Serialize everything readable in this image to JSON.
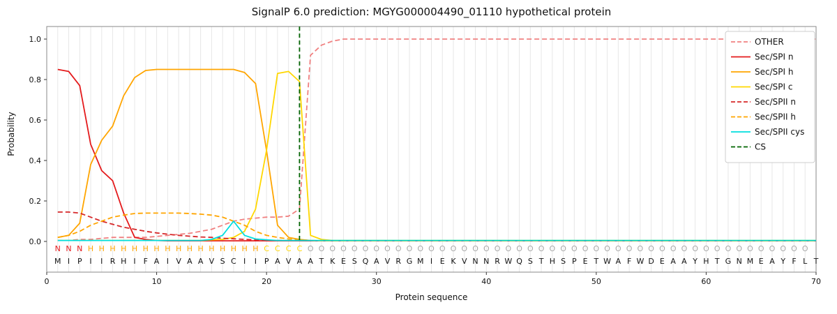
{
  "title": "SignalP 6.0 prediction: MGYG000004490_01110 hypothetical protein",
  "axes": {
    "x_label": "Protein sequence",
    "y_label": "Probability",
    "x_ticks": [
      0,
      10,
      20,
      30,
      40,
      50,
      60,
      70
    ],
    "y_ticks": [
      "0.0",
      "0.2",
      "0.4",
      "0.6",
      "0.8",
      "1.0"
    ],
    "x_range": [
      0,
      70
    ],
    "y_range": [
      0,
      1.05
    ],
    "grid": "vertical-per-residue"
  },
  "sequence": {
    "residues": "MIPIIRHIFAIVAAVSCIIPAVAATKESQAVRGMIEKVNNRWQSTHSPETWAFWDEAAYHTGNMEAYFLT",
    "regions": "NNNHHHHHHHHHHHHHHHHCCCCOOOOOOOOOOOOOOOOOOOOOOOOOOOOOOOOOOOOOOOOOOOOOO",
    "region_colors": {
      "N": "#e41a1c",
      "H": "#ffa500",
      "C": "#ffd700",
      "O": "#a8a8a8"
    }
  },
  "chart_data": {
    "type": "line",
    "x_positions": "1-70",
    "legend_position": "upper-right",
    "cs": {
      "label": "CS",
      "position": 23,
      "color": "#006400",
      "dash": true
    },
    "series": [
      {
        "name": "OTHER",
        "color": "#f08080",
        "dash": true,
        "values": [
          0.005,
          0.005,
          0.01,
          0.01,
          0.015,
          0.02,
          0.02,
          0.02,
          0.02,
          0.025,
          0.03,
          0.035,
          0.04,
          0.05,
          0.06,
          0.08,
          0.1,
          0.11,
          0.115,
          0.12,
          0.12,
          0.125,
          0.16,
          0.92,
          0.97,
          0.99,
          1.0,
          1.0,
          1.0,
          1.0,
          1.0,
          1.0,
          1.0,
          1.0,
          1.0,
          1.0,
          1.0,
          1.0,
          1.0,
          1.0,
          1.0,
          1.0,
          1.0,
          1.0,
          1.0,
          1.0,
          1.0,
          1.0,
          1.0,
          1.0,
          1.0,
          1.0,
          1.0,
          1.0,
          1.0,
          1.0,
          1.0,
          1.0,
          1.0,
          1.0,
          1.0,
          1.0,
          1.0,
          1.0,
          1.0,
          1.0,
          1.0,
          1.0,
          1.0,
          1.0
        ]
      },
      {
        "name": "Sec/SPI n",
        "color": "#e41a1c",
        "dash": false,
        "values": [
          0.85,
          0.84,
          0.77,
          0.48,
          0.35,
          0.3,
          0.14,
          0.02,
          0.01,
          0.005,
          0.003,
          0.003,
          0.003,
          0.003,
          0.003,
          0.003,
          0.003,
          0.003,
          0.003,
          0.003,
          0.003,
          0.003,
          0.003,
          0.003,
          0.003,
          0.003,
          0.003,
          0.003,
          0.003,
          0.003,
          0.003,
          0.003,
          0.003,
          0.003,
          0.003,
          0.003,
          0.003,
          0.003,
          0.003,
          0.003,
          0.003,
          0.003,
          0.003,
          0.003,
          0.003,
          0.003,
          0.003,
          0.003,
          0.003,
          0.003,
          0.003,
          0.003,
          0.003,
          0.003,
          0.003,
          0.003,
          0.003,
          0.003,
          0.003,
          0.003,
          0.003,
          0.003,
          0.003,
          0.003,
          0.003,
          0.003,
          0.003,
          0.003,
          0.003,
          0.003
        ]
      },
      {
        "name": "Sec/SPI h",
        "color": "#ffa500",
        "dash": false,
        "values": [
          0.02,
          0.03,
          0.09,
          0.38,
          0.5,
          0.57,
          0.72,
          0.81,
          0.845,
          0.85,
          0.85,
          0.85,
          0.85,
          0.85,
          0.85,
          0.85,
          0.85,
          0.835,
          0.78,
          0.45,
          0.08,
          0.02,
          0.01,
          0.005,
          0.003,
          0.003,
          0.003,
          0.003,
          0.003,
          0.003,
          0.003,
          0.003,
          0.003,
          0.003,
          0.003,
          0.003,
          0.003,
          0.003,
          0.003,
          0.003,
          0.003,
          0.003,
          0.003,
          0.003,
          0.003,
          0.003,
          0.003,
          0.003,
          0.003,
          0.003,
          0.003,
          0.003,
          0.003,
          0.003,
          0.003,
          0.003,
          0.003,
          0.003,
          0.003,
          0.003,
          0.003,
          0.003,
          0.003,
          0.003,
          0.003,
          0.003,
          0.003,
          0.003,
          0.003,
          0.003
        ]
      },
      {
        "name": "Sec/SPI c",
        "color": "#ffd700",
        "dash": false,
        "values": [
          0.005,
          0.005,
          0.005,
          0.005,
          0.005,
          0.005,
          0.005,
          0.005,
          0.005,
          0.005,
          0.005,
          0.005,
          0.005,
          0.005,
          0.008,
          0.01,
          0.02,
          0.05,
          0.16,
          0.45,
          0.83,
          0.84,
          0.79,
          0.03,
          0.01,
          0.005,
          0.005,
          0.005,
          0.005,
          0.005,
          0.005,
          0.005,
          0.005,
          0.005,
          0.005,
          0.005,
          0.005,
          0.005,
          0.005,
          0.005,
          0.005,
          0.005,
          0.005,
          0.005,
          0.005,
          0.005,
          0.005,
          0.005,
          0.005,
          0.005,
          0.005,
          0.005,
          0.005,
          0.005,
          0.005,
          0.005,
          0.005,
          0.005,
          0.005,
          0.005,
          0.005,
          0.005,
          0.005,
          0.005,
          0.005,
          0.005,
          0.005,
          0.005,
          0.005,
          0.005
        ]
      },
      {
        "name": "Sec/SPII n",
        "color": "#d62728",
        "dash": true,
        "values": [
          0.145,
          0.145,
          0.14,
          0.12,
          0.1,
          0.085,
          0.07,
          0.06,
          0.05,
          0.042,
          0.036,
          0.03,
          0.026,
          0.022,
          0.02,
          0.016,
          0.013,
          0.01,
          0.008,
          0.006,
          0.005,
          0.004,
          0.003,
          0.003,
          0.003,
          0.003,
          0.003,
          0.003,
          0.003,
          0.003,
          0.003,
          0.003,
          0.003,
          0.003,
          0.003,
          0.003,
          0.003,
          0.003,
          0.003,
          0.003,
          0.003,
          0.003,
          0.003,
          0.003,
          0.003,
          0.003,
          0.003,
          0.003,
          0.003,
          0.003,
          0.003,
          0.003,
          0.003,
          0.003,
          0.003,
          0.003,
          0.003,
          0.003,
          0.003,
          0.003,
          0.003,
          0.003,
          0.003,
          0.003,
          0.003,
          0.003,
          0.003,
          0.003,
          0.003,
          0.003
        ]
      },
      {
        "name": "Sec/SPII h",
        "color": "#ffa500",
        "dash": true,
        "values": [
          0.02,
          0.03,
          0.05,
          0.08,
          0.1,
          0.12,
          0.13,
          0.138,
          0.14,
          0.14,
          0.14,
          0.14,
          0.138,
          0.135,
          0.13,
          0.12,
          0.1,
          0.08,
          0.05,
          0.03,
          0.02,
          0.012,
          0.008,
          0.005,
          0.003,
          0.003,
          0.003,
          0.003,
          0.003,
          0.003,
          0.003,
          0.003,
          0.003,
          0.003,
          0.003,
          0.003,
          0.003,
          0.003,
          0.003,
          0.003,
          0.003,
          0.003,
          0.003,
          0.003,
          0.003,
          0.003,
          0.003,
          0.003,
          0.003,
          0.003,
          0.003,
          0.003,
          0.003,
          0.003,
          0.003,
          0.003,
          0.003,
          0.003,
          0.003,
          0.003,
          0.003,
          0.003,
          0.003,
          0.003,
          0.003,
          0.003,
          0.003,
          0.003,
          0.003,
          0.003
        ]
      },
      {
        "name": "Sec/SPII cys",
        "color": "#00dede",
        "dash": false,
        "values": [
          0.005,
          0.005,
          0.005,
          0.005,
          0.005,
          0.005,
          0.005,
          0.005,
          0.005,
          0.005,
          0.005,
          0.005,
          0.005,
          0.005,
          0.01,
          0.03,
          0.1,
          0.03,
          0.012,
          0.008,
          0.005,
          0.005,
          0.005,
          0.005,
          0.005,
          0.005,
          0.005,
          0.005,
          0.005,
          0.005,
          0.005,
          0.005,
          0.005,
          0.005,
          0.005,
          0.005,
          0.005,
          0.005,
          0.005,
          0.005,
          0.005,
          0.005,
          0.005,
          0.005,
          0.005,
          0.005,
          0.005,
          0.005,
          0.005,
          0.005,
          0.005,
          0.005,
          0.005,
          0.005,
          0.005,
          0.005,
          0.005,
          0.005,
          0.005,
          0.005,
          0.005,
          0.005,
          0.005,
          0.005,
          0.005,
          0.005,
          0.005,
          0.005,
          0.005,
          0.005
        ]
      }
    ]
  }
}
